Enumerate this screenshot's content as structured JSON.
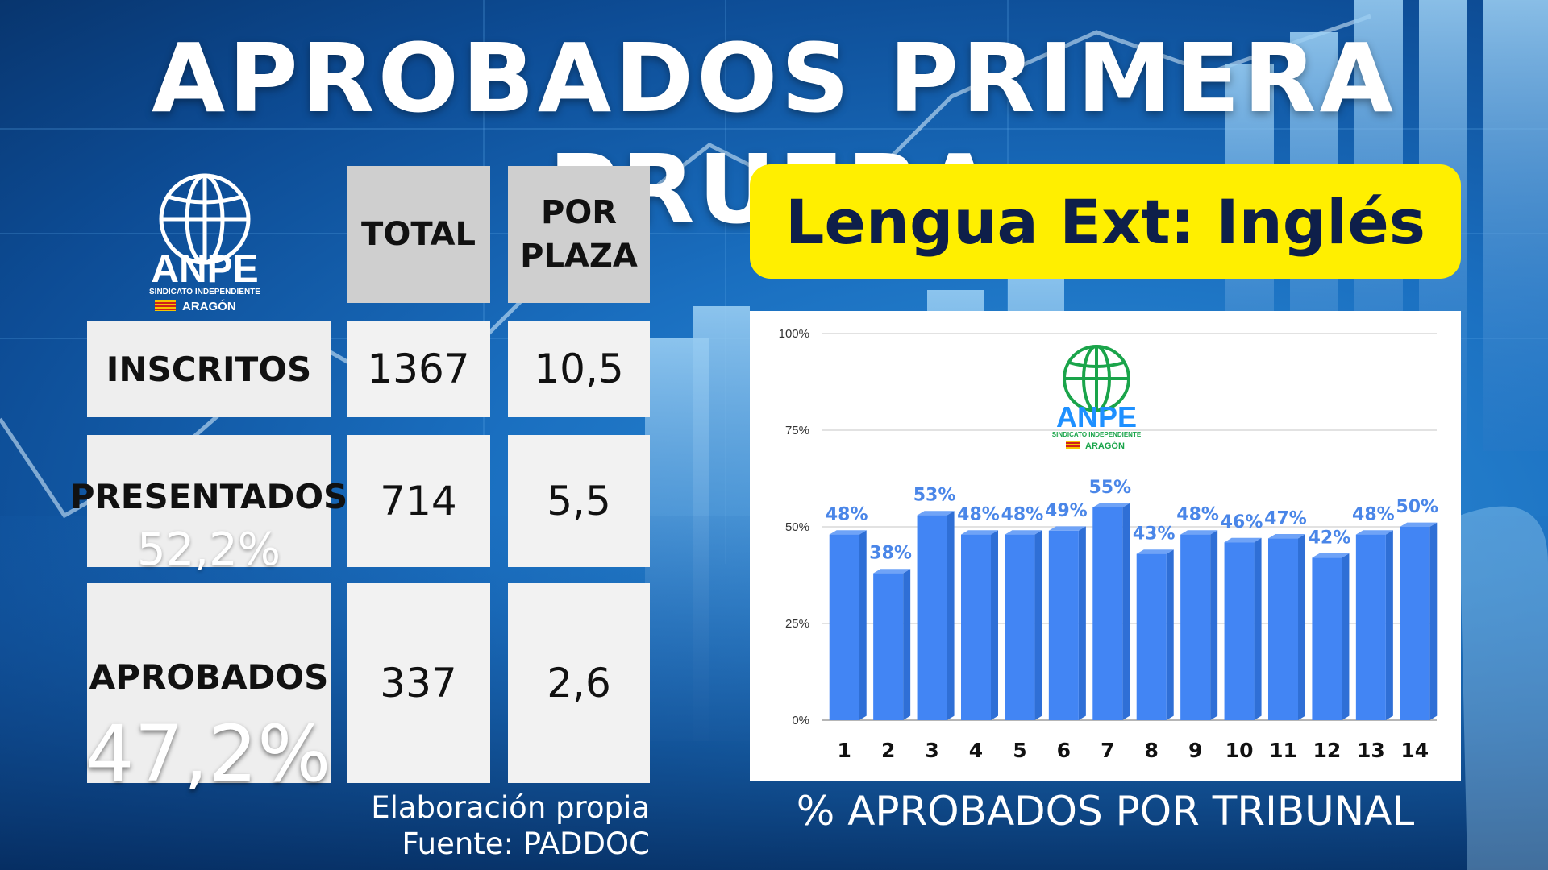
{
  "title": "APROBADOS PRIMERA PRUEBA",
  "subtitle": "Lengua Ext: Inglés",
  "logo": {
    "name": "ANPE",
    "tagline": "SINDICATO INDEPENDIENTE",
    "region": "ARAGÓN"
  },
  "table": {
    "headers": {
      "total": "TOTAL",
      "por_plaza_1": "POR",
      "por_plaza_2": "PLAZA"
    },
    "rows": [
      {
        "label": "INSCRITOS",
        "total": "1367",
        "por_plaza": "10,5",
        "percent": ""
      },
      {
        "label": "PRESENTADOS",
        "total": "714",
        "por_plaza": "5,5",
        "percent": "52,2%"
      },
      {
        "label": "APROBADOS",
        "total": "337",
        "por_plaza": "2,6",
        "percent": "47,2%"
      }
    ]
  },
  "footer": {
    "line1": "Elaboración propia",
    "line2": "Fuente: PADDOC"
  },
  "colors": {
    "bar": "#4285f4",
    "label": "#4a86e8",
    "highlight": "#ffef00"
  },
  "chart_data": {
    "type": "bar",
    "title": "% APROBADOS POR TRIBUNAL",
    "categories": [
      "1",
      "2",
      "3",
      "4",
      "5",
      "6",
      "7",
      "8",
      "9",
      "10",
      "11",
      "12",
      "13",
      "14"
    ],
    "values": [
      48,
      38,
      53,
      48,
      48,
      49,
      55,
      43,
      48,
      46,
      47,
      42,
      48,
      50
    ],
    "data_labels": [
      "48%",
      "38%",
      "53%",
      "48%",
      "48%",
      "49%",
      "55%",
      "43%",
      "48%",
      "46%",
      "47%",
      "42%",
      "48%",
      "50%"
    ],
    "yticks": [
      "0%",
      "25%",
      "50%",
      "75%",
      "100%"
    ],
    "ylim": [
      0,
      100
    ],
    "grid": true
  }
}
